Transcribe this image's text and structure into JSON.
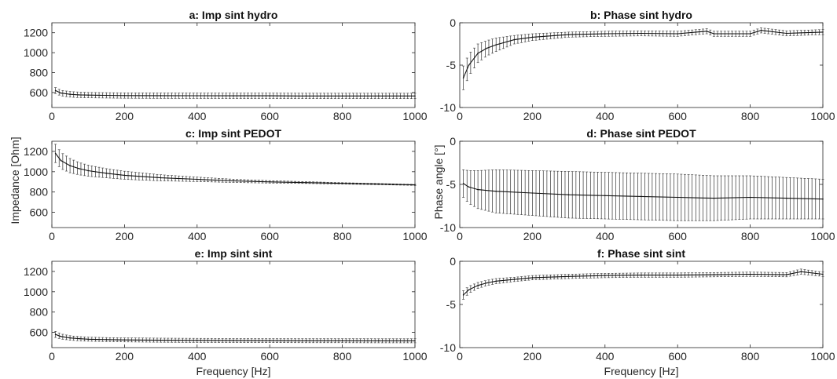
{
  "figure": {
    "xlabel": "Frequency [Hz]",
    "ylabel_left": "Impedance [Ohm]",
    "ylabel_right": "Phase angle [°]"
  },
  "chart_data": [
    {
      "type": "line",
      "panel": "a",
      "title": "a: Imp sint hydro",
      "xlabel": "",
      "ylabel": "",
      "xlim": [
        0,
        1000
      ],
      "ylim": [
        450,
        1300
      ],
      "xticks": [
        0,
        200,
        400,
        600,
        800,
        1000
      ],
      "yticks": [
        600,
        800,
        1000,
        1200
      ],
      "error_bars": true,
      "x": [
        10,
        25,
        50,
        75,
        100,
        150,
        200,
        300,
        400,
        500,
        600,
        700,
        800,
        900,
        1000
      ],
      "y": [
        620,
        595,
        582,
        577,
        574,
        572,
        570,
        569,
        568,
        567,
        567,
        566,
        566,
        566,
        566
      ],
      "error": [
        30,
        28,
        28,
        28,
        27,
        27,
        27,
        27,
        27,
        27,
        27,
        27,
        27,
        27,
        27
      ]
    },
    {
      "type": "line",
      "panel": "b",
      "title": "b: Phase sint hydro",
      "xlabel": "",
      "ylabel": "",
      "xlim": [
        0,
        1000
      ],
      "ylim": [
        -10,
        0
      ],
      "xticks": [
        0,
        200,
        400,
        600,
        800,
        1000
      ],
      "yticks": [
        -10,
        -5,
        0
      ],
      "error_bars": true,
      "x": [
        10,
        25,
        50,
        75,
        100,
        150,
        200,
        300,
        400,
        500,
        600,
        680,
        700,
        800,
        830,
        900,
        1000
      ],
      "y": [
        -6.5,
        -5.0,
        -3.6,
        -3.0,
        -2.6,
        -2.0,
        -1.7,
        -1.4,
        -1.3,
        -1.25,
        -1.3,
        -1.0,
        -1.3,
        -1.3,
        -0.9,
        -1.25,
        -1.1
      ],
      "error": [
        1.4,
        1.3,
        1.1,
        0.9,
        0.8,
        0.5,
        0.4,
        0.3,
        0.3,
        0.3,
        0.3,
        0.3,
        0.3,
        0.3,
        0.3,
        0.3,
        0.3
      ]
    },
    {
      "type": "line",
      "panel": "c",
      "title": "c: Imp sint PEDOT",
      "xlabel": "",
      "ylabel": "Impedance [Ohm]",
      "xlim": [
        0,
        1000
      ],
      "ylim": [
        450,
        1300
      ],
      "xticks": [
        0,
        200,
        400,
        600,
        800,
        1000
      ],
      "yticks": [
        600,
        800,
        1000,
        1200
      ],
      "error_bars": true,
      "x": [
        10,
        25,
        50,
        75,
        100,
        150,
        200,
        300,
        400,
        500,
        600,
        700,
        800,
        900,
        1000
      ],
      "y": [
        1180,
        1110,
        1060,
        1030,
        1010,
        985,
        965,
        940,
        925,
        910,
        900,
        893,
        885,
        878,
        870
      ],
      "error": [
        90,
        80,
        70,
        60,
        55,
        45,
        40,
        30,
        22,
        16,
        12,
        9,
        7,
        6,
        5
      ]
    },
    {
      "type": "line",
      "panel": "d",
      "title": "d: Phase sint PEDOT",
      "xlabel": "",
      "ylabel": "Phase angle [°]",
      "xlim": [
        0,
        1000
      ],
      "ylim": [
        -10,
        0
      ],
      "xticks": [
        0,
        200,
        400,
        600,
        800,
        1000
      ],
      "yticks": [
        -10,
        -5,
        0
      ],
      "error_bars": true,
      "x": [
        10,
        25,
        50,
        100,
        200,
        300,
        400,
        500,
        600,
        700,
        800,
        900,
        1000
      ],
      "y": [
        -4.9,
        -5.3,
        -5.6,
        -5.8,
        -6.0,
        -6.2,
        -6.3,
        -6.4,
        -6.5,
        -6.6,
        -6.5,
        -6.6,
        -6.7
      ],
      "error": [
        1.6,
        1.9,
        2.2,
        2.5,
        2.6,
        2.7,
        2.7,
        2.7,
        2.7,
        2.6,
        2.5,
        2.4,
        2.3
      ]
    },
    {
      "type": "line",
      "panel": "e",
      "title": "e: Imp sint sint",
      "xlabel": "Frequency [Hz]",
      "ylabel": "",
      "xlim": [
        0,
        1000
      ],
      "ylim": [
        450,
        1300
      ],
      "xticks": [
        0,
        200,
        400,
        600,
        800,
        1000
      ],
      "yticks": [
        600,
        800,
        1000,
        1200
      ],
      "error_bars": true,
      "x": [
        10,
        25,
        50,
        75,
        100,
        150,
        200,
        300,
        400,
        500,
        600,
        700,
        800,
        900,
        1000
      ],
      "y": [
        580,
        560,
        545,
        538,
        533,
        529,
        526,
        523,
        521,
        520,
        519,
        518,
        518,
        517,
        517
      ],
      "error": [
        30,
        25,
        22,
        21,
        20,
        20,
        20,
        20,
        20,
        20,
        20,
        20,
        20,
        20,
        20
      ]
    },
    {
      "type": "line",
      "panel": "f",
      "title": "f: Phase sint sint",
      "xlabel": "Frequency [Hz]",
      "ylabel": "",
      "xlim": [
        0,
        1000
      ],
      "ylim": [
        -10,
        0
      ],
      "xticks": [
        0,
        200,
        400,
        600,
        800,
        1000
      ],
      "yticks": [
        -10,
        -5,
        0
      ],
      "error_bars": true,
      "x": [
        10,
        25,
        50,
        75,
        100,
        150,
        200,
        300,
        400,
        500,
        600,
        700,
        800,
        900,
        940,
        1000
      ],
      "y": [
        -3.9,
        -3.3,
        -2.8,
        -2.5,
        -2.3,
        -2.1,
        -1.9,
        -1.75,
        -1.65,
        -1.6,
        -1.6,
        -1.55,
        -1.5,
        -1.55,
        -1.2,
        -1.5
      ],
      "error": [
        0.5,
        0.4,
        0.35,
        0.3,
        0.3,
        0.25,
        0.25,
        0.25,
        0.25,
        0.25,
        0.25,
        0.25,
        0.25,
        0.25,
        0.3,
        0.25
      ]
    }
  ]
}
